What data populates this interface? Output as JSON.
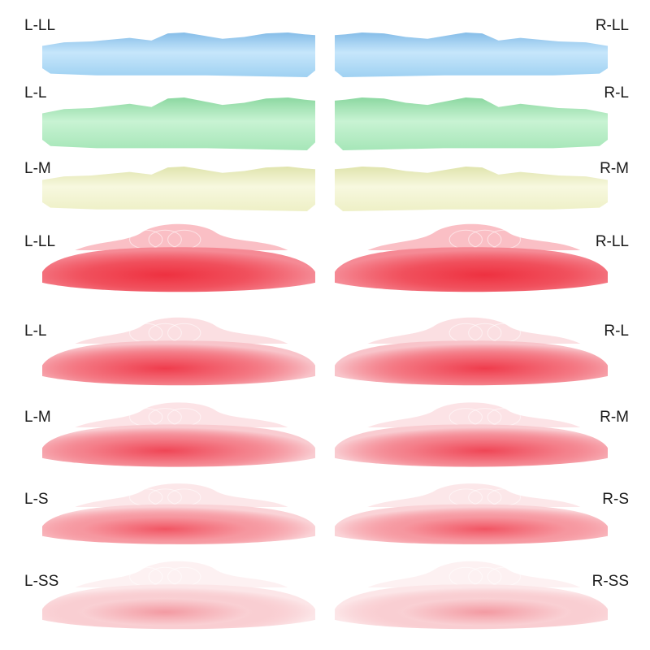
{
  "products": [
    {
      "type": "silicone",
      "color": "#9fd1f2",
      "dark": "#86bde8",
      "light": "#c6e6fb",
      "left_label": "L-LL",
      "right_label": "R-LL"
    },
    {
      "type": "silicone",
      "color": "#a6e6b8",
      "dark": "#8cd8a1",
      "light": "#c8f3d3",
      "left_label": "L-L",
      "right_label": "R-L"
    },
    {
      "type": "silicone",
      "color": "#eef0c6",
      "dark": "#e0e4ad",
      "light": "#f7f8df",
      "left_label": "L-M",
      "right_label": "R-M"
    },
    {
      "type": "rose",
      "color": "#ee3140",
      "outer": "#f58a95",
      "intensity": 1.0,
      "left_label": "L-LL",
      "right_label": "R-LL"
    },
    {
      "type": "rose",
      "color": "#ef3c4c",
      "outer": "#f8c4ca",
      "intensity": 0.85,
      "left_label": "L-L",
      "right_label": "R-L"
    },
    {
      "type": "rose",
      "color": "#ef4656",
      "outer": "#f9ccd1",
      "intensity": 0.8,
      "left_label": "L-M",
      "right_label": "R-M"
    },
    {
      "type": "rose",
      "color": "#f15563",
      "outer": "#fad3d7",
      "intensity": 0.72,
      "left_label": "L-S",
      "right_label": "R-S"
    },
    {
      "type": "rose",
      "color": "#f39aa2",
      "outer": "#fce6e8",
      "intensity": 0.55,
      "left_label": "L-SS",
      "right_label": "R-SS"
    }
  ]
}
